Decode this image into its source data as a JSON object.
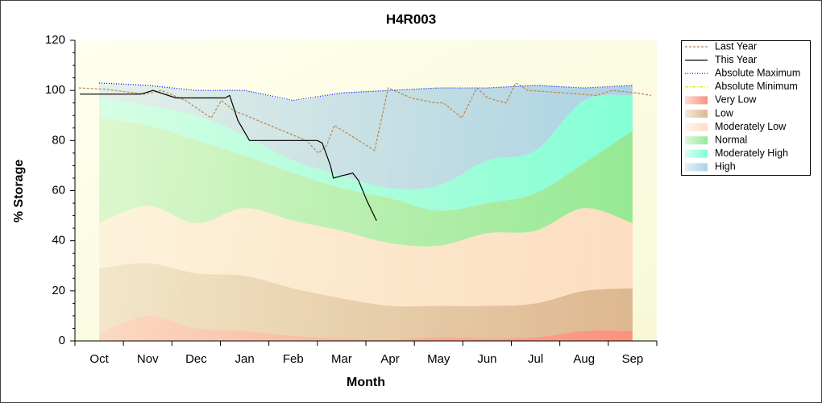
{
  "chart_data": {
    "type": "line",
    "title": "H4R003",
    "x_label": "Month",
    "y_label": "% Storage",
    "categories": [
      "Oct",
      "Nov",
      "Dec",
      "Jan",
      "Feb",
      "Mar",
      "Apr",
      "May",
      "Jun",
      "Jul",
      "Aug",
      "Sep"
    ],
    "xlim": [
      -0.5,
      11.5
    ],
    "ylim": [
      0,
      120
    ],
    "yticks": [
      0,
      20,
      40,
      60,
      80,
      100,
      120
    ],
    "series": [
      {
        "name": "Last Year",
        "type": "line",
        "color": "#c08040",
        "dash": "3,2",
        "x": [
          -0.42,
          0.11,
          0.95,
          1.28,
          1.78,
          2.31,
          2.52,
          2.77,
          3.27,
          3.77,
          4.27,
          4.52,
          4.69,
          4.85,
          5.27,
          5.68,
          5.96,
          6.43,
          6.93,
          7.1,
          7.48,
          7.79,
          8.01,
          8.39,
          8.59,
          8.84,
          9.59,
          10.25,
          10.58,
          11.08,
          11.38
        ],
        "values": [
          101,
          100.5,
          98.5,
          100,
          96,
          89,
          96,
          92,
          88,
          84,
          80,
          75,
          78,
          86,
          81,
          76,
          101,
          97,
          95,
          95,
          89,
          101,
          97,
          95,
          103,
          100,
          99,
          98,
          100,
          99,
          98
        ]
      },
      {
        "name": "This Year",
        "type": "line",
        "color": "#000000",
        "dash": "",
        "x": [
          -0.4,
          0.86,
          1.11,
          1.58,
          2.6,
          2.69,
          2.86,
          3.1,
          4.5,
          4.6,
          4.77,
          4.83,
          5.02,
          5.23,
          5.35,
          5.52,
          5.72
        ],
        "values": [
          98.5,
          98.5,
          100,
          97,
          97,
          98,
          88,
          80,
          80,
          79,
          70,
          65,
          66,
          67,
          64,
          56,
          48
        ]
      },
      {
        "name": "Absolute Maximum",
        "type": "line",
        "color": "#0000ff",
        "dash": "1,2",
        "values": [
          103,
          102,
          100,
          100,
          96,
          99,
          100,
          101,
          101,
          102,
          101,
          102
        ]
      },
      {
        "name": "Absolute Minimum",
        "type": "line",
        "color": "#e0e000",
        "dash": "4,2,1,2",
        "values": [
          null,
          null,
          null,
          null,
          null,
          null,
          null,
          null,
          null,
          null,
          null,
          null
        ]
      },
      {
        "name": "Very Low",
        "type": "band",
        "color": "#fa8c78",
        "values": [
          3,
          10,
          5,
          4,
          2,
          1,
          0.5,
          1.5,
          1,
          1.5,
          4,
          4
        ]
      },
      {
        "name": "Low",
        "type": "band",
        "color": "#dcb48c",
        "values": [
          26,
          21,
          22,
          22,
          19,
          16,
          13.5,
          12.5,
          13,
          13.5,
          16,
          17
        ]
      },
      {
        "name": "Moderately Low",
        "type": "band",
        "color": "#fddcc0",
        "values": [
          18,
          23,
          20,
          27,
          27,
          27,
          25,
          24,
          29,
          29,
          33,
          26
        ]
      },
      {
        "name": "Normal",
        "type": "band",
        "color": "#90e890",
        "values": [
          42,
          32,
          33,
          21,
          19,
          17,
          18,
          14,
          12,
          15,
          18,
          37
        ]
      },
      {
        "name": "Moderately High",
        "type": "band",
        "color": "#7dffd6",
        "values": [
          8,
          8,
          10,
          8,
          5,
          5,
          4,
          10,
          17,
          17,
          25,
          14
        ]
      },
      {
        "name": "High",
        "type": "band",
        "color": "#a8d0e4",
        "values": [
          6,
          8,
          10,
          18,
          24,
          33,
          39,
          39,
          29,
          26,
          5,
          4
        ]
      }
    ]
  }
}
